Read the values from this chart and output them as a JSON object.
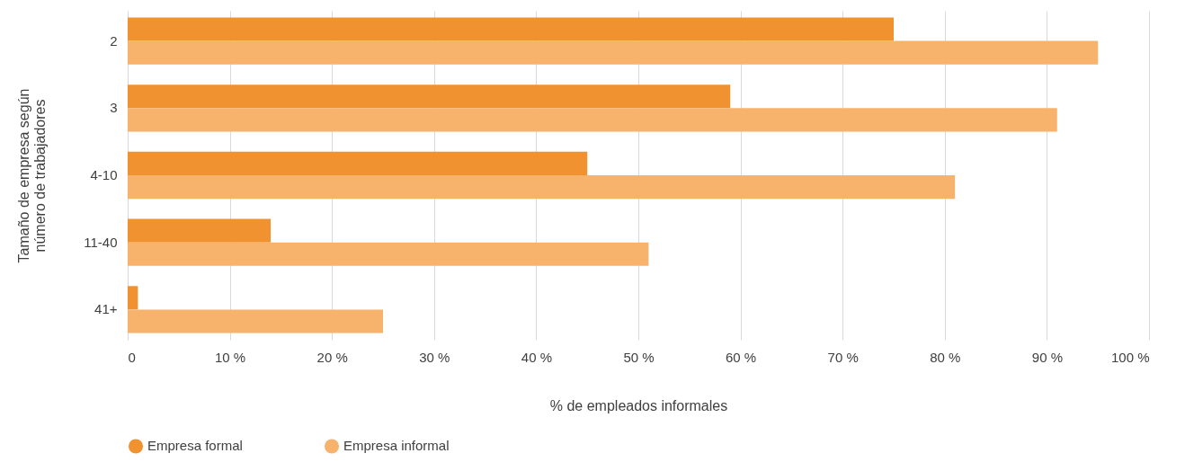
{
  "chart_data": {
    "type": "bar",
    "orientation": "horizontal",
    "categories": [
      "2",
      "3",
      "4-10",
      "11-40",
      "41+"
    ],
    "series": [
      {
        "name": "Empresa formal",
        "color": "#f0922f",
        "values": [
          75,
          59,
          45,
          14,
          1
        ]
      },
      {
        "name": "Empresa informal",
        "color": "#f7b26b",
        "values": [
          95,
          91,
          81,
          51,
          25
        ]
      }
    ],
    "xlabel": "% de empleados informales",
    "ylabel": "Tamaño de empresa según número de trabajadores",
    "xlim": [
      0,
      100
    ],
    "xticks": [
      0,
      {
        "value": 10,
        "label": "10 %"
      },
      {
        "value": 20,
        "label": "20 %"
      },
      {
        "value": 30,
        "label": "30 %"
      },
      {
        "value": 40,
        "label": "40 %"
      },
      {
        "value": 50,
        "label": "50 %"
      },
      {
        "value": 60,
        "label": "60 %"
      },
      {
        "value": 70,
        "label": "70 %"
      },
      {
        "value": 80,
        "label": "80 %"
      },
      {
        "value": 90,
        "label": "90 %"
      },
      {
        "value": 100,
        "label": "100 %"
      }
    ],
    "grid": "x",
    "legend": "bottom"
  }
}
